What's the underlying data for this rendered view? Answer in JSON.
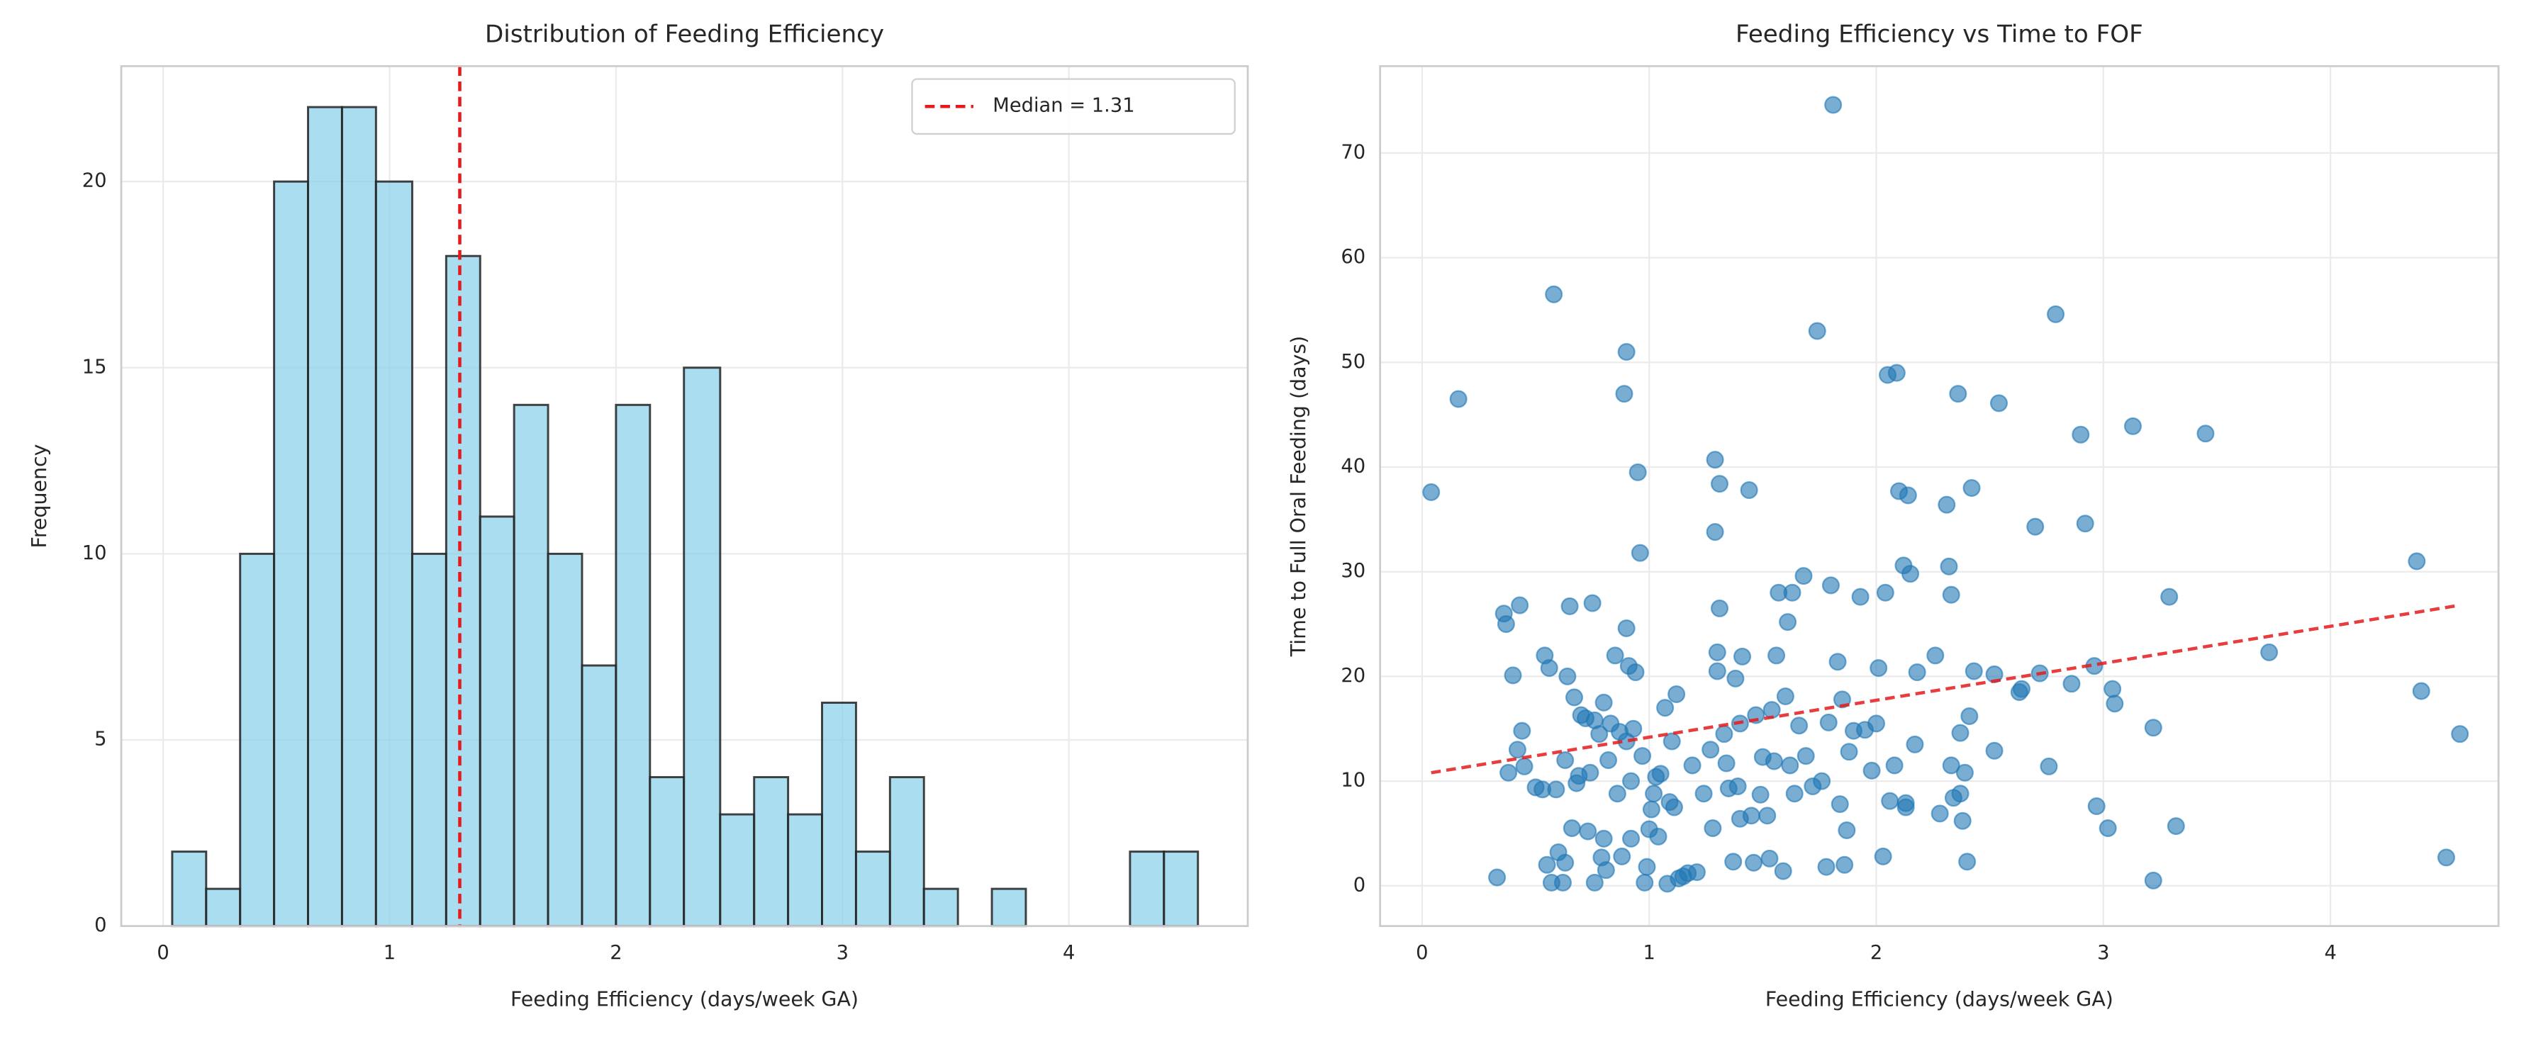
{
  "chart_data": [
    {
      "type": "histogram",
      "title": "Distribution of Feeding Efficiency",
      "xlabel": "Feeding Efficiency (days/week GA)",
      "ylabel": "Frequency",
      "bins": [
        0.04,
        0.19,
        0.34,
        0.49,
        0.64,
        0.79,
        0.94,
        1.1,
        1.25,
        1.4,
        1.55,
        1.7,
        1.85,
        2.0,
        2.15,
        2.3,
        2.46,
        2.61,
        2.76,
        2.91,
        3.06,
        3.21,
        3.36,
        3.51,
        3.66,
        3.81,
        3.97,
        4.12,
        4.27,
        4.42,
        4.57
      ],
      "counts": [
        2,
        1,
        10,
        20,
        22,
        22,
        20,
        10,
        18,
        11,
        14,
        10,
        7,
        14,
        4,
        15,
        3,
        4,
        3,
        6,
        2,
        4,
        1,
        0,
        1,
        0,
        0,
        0,
        2,
        2
      ],
      "color": "#87ceeb",
      "edgecolor": "#222222",
      "xlim": [
        -0.185,
        4.79
      ],
      "ylim": [
        0,
        23.1
      ],
      "xticks": [
        0,
        1,
        2,
        3,
        4
      ],
      "yticks": [
        0,
        5,
        10,
        15,
        20
      ],
      "grid": true,
      "vline": {
        "value": 1.31,
        "label": "Median = 1.31",
        "color": "#e41a1c"
      },
      "legend": "upper right"
    },
    {
      "type": "scatter",
      "title": "Feeding Efficiency vs Time to FOF",
      "xlabel": "Feeding Efficiency (days/week GA)",
      "ylabel": "Time to Full Oral Feeding (days)",
      "x": [
        0.04,
        0.16,
        0.33,
        0.36,
        0.37,
        0.38,
        0.4,
        0.42,
        0.43,
        0.44,
        0.45,
        0.5,
        0.53,
        0.54,
        0.55,
        0.56,
        0.57,
        0.58,
        0.59,
        0.6,
        0.62,
        0.63,
        0.63,
        0.64,
        0.65,
        0.66,
        0.67,
        0.68,
        0.69,
        0.7,
        0.72,
        0.73,
        0.74,
        0.75,
        0.76,
        0.76,
        0.78,
        0.79,
        0.8,
        0.8,
        0.81,
        0.82,
        0.83,
        0.85,
        0.86,
        0.87,
        0.88,
        0.89,
        0.9,
        0.9,
        0.9,
        0.91,
        0.92,
        0.92,
        0.93,
        0.94,
        0.95,
        0.96,
        0.97,
        0.98,
        0.99,
        1.0,
        1.01,
        1.02,
        1.03,
        1.04,
        1.05,
        1.07,
        1.08,
        1.09,
        1.1,
        1.11,
        1.12,
        1.13,
        1.15,
        1.17,
        1.19,
        1.21,
        1.24,
        1.27,
        1.28,
        1.29,
        1.29,
        1.3,
        1.3,
        1.31,
        1.31,
        1.33,
        1.34,
        1.35,
        1.37,
        1.38,
        1.39,
        1.4,
        1.4,
        1.41,
        1.44,
        1.45,
        1.46,
        1.47,
        1.49,
        1.5,
        1.52,
        1.53,
        1.54,
        1.55,
        1.56,
        1.57,
        1.59,
        1.6,
        1.61,
        1.62,
        1.63,
        1.64,
        1.66,
        1.68,
        1.69,
        1.72,
        1.74,
        1.76,
        1.78,
        1.79,
        1.8,
        1.81,
        1.83,
        1.84,
        1.85,
        1.86,
        1.87,
        1.88,
        1.9,
        1.93,
        1.95,
        1.98,
        2.0,
        2.01,
        2.03,
        2.04,
        2.05,
        2.06,
        2.08,
        2.09,
        2.1,
        2.12,
        2.13,
        2.13,
        2.14,
        2.15,
        2.17,
        2.18,
        2.26,
        2.28,
        2.31,
        2.32,
        2.33,
        2.33,
        2.34,
        2.36,
        2.37,
        2.37,
        2.38,
        2.39,
        2.4,
        2.41,
        2.42,
        2.43,
        2.52,
        2.52,
        2.54,
        2.63,
        2.64,
        2.7,
        2.72,
        2.76,
        2.79,
        2.86,
        2.9,
        2.92,
        2.96,
        2.97,
        3.02,
        3.04,
        3.05,
        3.13,
        3.22,
        3.22,
        3.29,
        3.32,
        3.45,
        3.73,
        4.38,
        4.4,
        4.51,
        4.57
      ],
      "values": [
        37.6,
        46.5,
        0.8,
        26,
        25,
        10.8,
        20.1,
        13,
        26.8,
        14.8,
        11.4,
        9.4,
        9.2,
        22,
        2,
        20.8,
        0.3,
        56.5,
        9.2,
        3.2,
        0.3,
        2.2,
        12,
        20,
        26.7,
        5.5,
        18,
        9.8,
        10.5,
        16.3,
        16,
        5.2,
        10.8,
        27,
        15.8,
        0.3,
        14.5,
        2.7,
        17.5,
        4.5,
        1.5,
        12,
        15.5,
        22,
        8.8,
        14.7,
        2.8,
        47,
        51,
        24.6,
        13.8,
        21,
        4.5,
        10,
        15,
        20.4,
        39.5,
        31.8,
        12.4,
        0.3,
        1.8,
        5.4,
        7.3,
        8.8,
        10.4,
        4.7,
        10.7,
        17,
        0.2,
        8,
        13.8,
        7.5,
        18.3,
        0.7,
        0.9,
        1.2,
        11.5,
        1.3,
        8.8,
        13,
        5.5,
        40.7,
        33.8,
        22.3,
        20.5,
        26.5,
        38.4,
        14.5,
        11.7,
        9.3,
        2.3,
        19.8,
        9.5,
        6.4,
        15.5,
        21.9,
        37.8,
        6.7,
        2.2,
        16.3,
        8.7,
        12.3,
        6.7,
        2.6,
        16.8,
        11.9,
        22,
        28,
        1.4,
        18.1,
        25.2,
        11.5,
        28,
        8.8,
        15.3,
        29.6,
        12.4,
        9.5,
        53,
        10,
        1.8,
        15.6,
        28.7,
        74.6,
        21.4,
        7.8,
        17.8,
        2,
        5.3,
        12.8,
        14.8,
        27.6,
        14.9,
        11,
        15.5,
        20.8,
        2.8,
        28,
        48.8,
        8.1,
        11.5,
        49,
        37.7,
        30.6,
        7.9,
        7.5,
        37.3,
        29.8,
        13.5,
        20.4,
        22,
        6.9,
        36.4,
        30.5,
        27.8,
        11.5,
        8.4,
        47,
        8.8,
        14.6,
        6.2,
        10.8,
        2.3,
        16.2,
        38,
        20.5,
        12.9,
        20.2,
        46.1,
        18.5,
        18.8,
        34.3,
        20.3,
        11.4,
        54.6,
        19.3,
        43.1,
        34.6,
        21,
        7.6,
        5.5,
        18.8,
        17.4,
        43.9,
        0.5,
        15.1,
        27.6,
        5.7,
        43.2,
        22.3,
        31,
        18.6,
        2.7,
        14.5
      ],
      "color": "#1f77b4",
      "trend": {
        "x": [
          0.04,
          4.57
        ],
        "values": [
          10.8,
          26.8
        ],
        "color": "#e41a1c"
      },
      "xlim": [
        -0.185,
        4.74
      ],
      "ylim": [
        -3.85,
        78.3
      ],
      "xticks": [
        0,
        1,
        2,
        3,
        4
      ],
      "yticks": [
        0,
        10,
        20,
        30,
        40,
        50,
        60,
        70
      ],
      "grid": true
    }
  ]
}
